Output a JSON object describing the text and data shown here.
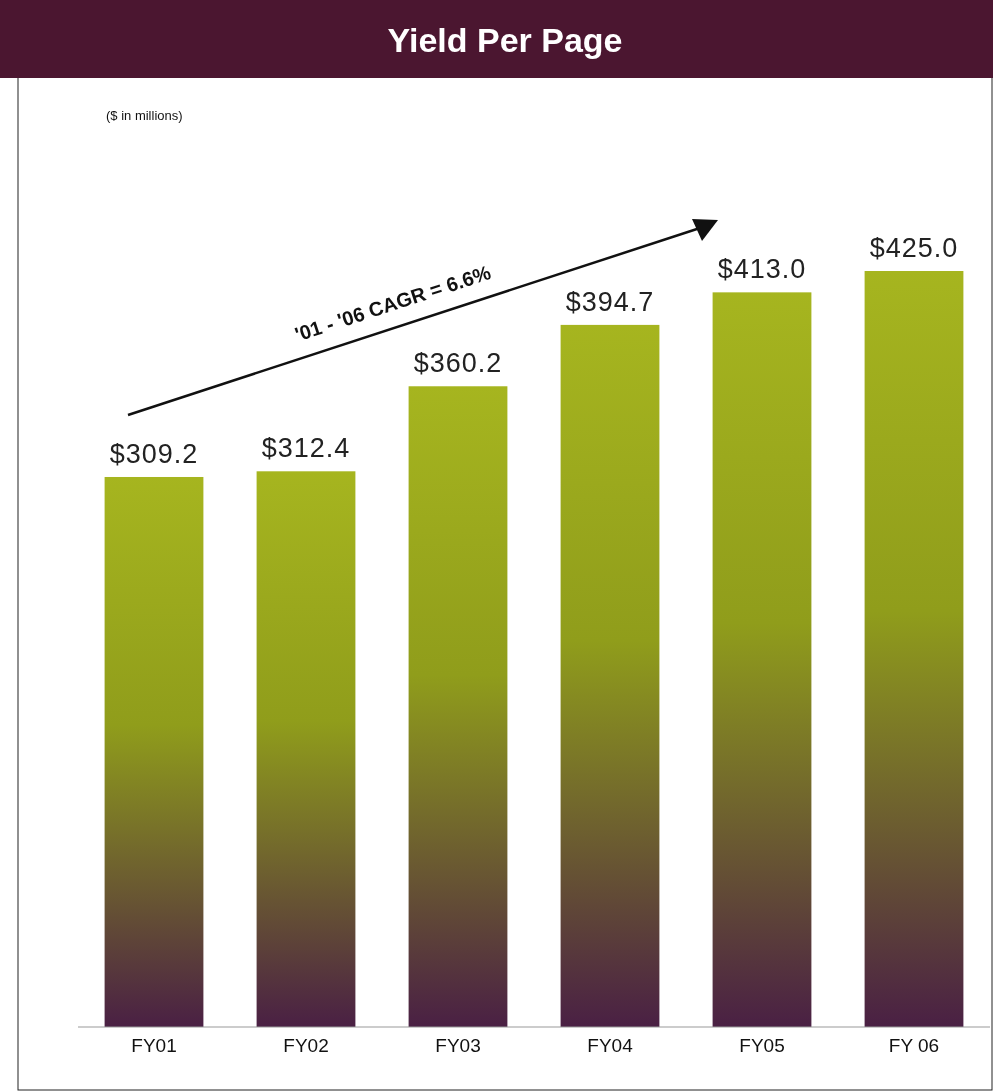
{
  "chart_data": {
    "type": "bar",
    "title": "Yield Per Page",
    "subtitle": "($ in millions)",
    "categories": [
      "FY01",
      "FY02",
      "FY03",
      "FY04",
      "FY05",
      "FY 06"
    ],
    "values": [
      309.2,
      312.4,
      360.2,
      394.7,
      413.0,
      425.0
    ],
    "value_labels": [
      "$309.2",
      "$312.4",
      "$360.2",
      "$394.7",
      "$413.0",
      "$425.0"
    ],
    "color": "#a6b51f",
    "tick_labels": "x",
    "annotations": [
      "'01 - '06 CAGR = 6.6%"
    ]
  }
}
